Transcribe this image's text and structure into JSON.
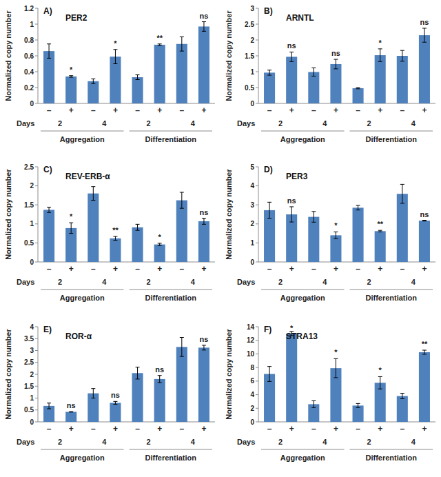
{
  "chart_data": [
    {
      "type": "bar",
      "panel_label": "A)",
      "title": "PER2",
      "y_label": "Normalized copy number",
      "x_label": "Days",
      "categories": [
        "–",
        "+",
        "–",
        "+",
        "–",
        "+",
        "–",
        "+"
      ],
      "days": [
        "2",
        "4",
        "2",
        "4"
      ],
      "conditions": [
        "Aggregation",
        "Differentiation"
      ],
      "values": [
        0.66,
        0.34,
        0.28,
        0.59,
        0.33,
        0.74,
        0.75,
        0.97
      ],
      "errors": [
        0.09,
        0.01,
        0.03,
        0.09,
        0.03,
        0.01,
        0.09,
        0.06
      ],
      "significance": [
        "*",
        "*",
        "**",
        "ns"
      ],
      "color": "#4f81bd",
      "ylim": [
        0,
        1.2
      ],
      "yticks": [
        0,
        0.2,
        0.4,
        0.6,
        0.8,
        1,
        1.2
      ],
      "grid": false
    },
    {
      "type": "bar",
      "panel_label": "B)",
      "title": "ARNTL",
      "y_label": "Normalized copy number",
      "x_label": "Days",
      "categories": [
        "–",
        "+",
        "–",
        "+",
        "–",
        "+",
        "–",
        "+"
      ],
      "days": [
        "2",
        "4",
        "2",
        "4"
      ],
      "conditions": [
        "Aggregation",
        "Differentiation"
      ],
      "values": [
        0.97,
        1.47,
        0.99,
        1.24,
        0.48,
        1.52,
        1.5,
        2.15
      ],
      "errors": [
        0.08,
        0.15,
        0.13,
        0.15,
        0.02,
        0.2,
        0.17,
        0.22
      ],
      "significance": [
        "ns",
        "ns",
        "*",
        "ns"
      ],
      "color": "#4f81bd",
      "ylim": [
        0,
        3
      ],
      "yticks": [
        0,
        0.5,
        1,
        1.5,
        2,
        2.5,
        3
      ],
      "grid": false
    },
    {
      "type": "bar",
      "panel_label": "C)",
      "title": "REV-ERB-α",
      "y_label": "Normalized copy number",
      "x_label": "Days",
      "categories": [
        "–",
        "+",
        "–",
        "+",
        "–",
        "+",
        "–",
        "+"
      ],
      "days": [
        "2",
        "4",
        "2",
        "4"
      ],
      "conditions": [
        "Aggregation",
        "Differentiation"
      ],
      "values": [
        1.37,
        0.89,
        1.8,
        0.62,
        0.91,
        0.46,
        1.62,
        1.07
      ],
      "errors": [
        0.07,
        0.14,
        0.18,
        0.05,
        0.08,
        0.03,
        0.21,
        0.08
      ],
      "significance": [
        "*",
        "**",
        "*",
        "ns"
      ],
      "color": "#4f81bd",
      "ylim": [
        0,
        2.5
      ],
      "yticks": [
        0,
        0.5,
        1,
        1.5,
        2,
        2.5
      ],
      "grid": false
    },
    {
      "type": "bar",
      "panel_label": "D)",
      "title": "PER3",
      "y_label": "Normalized copy number",
      "x_label": "Days",
      "categories": [
        "–",
        "+",
        "–",
        "+",
        "–",
        "+",
        "–",
        "+"
      ],
      "days": [
        "2",
        "4",
        "2",
        "4"
      ],
      "conditions": [
        "Aggregation",
        "Differentiation"
      ],
      "values": [
        2.72,
        2.5,
        2.37,
        1.4,
        2.85,
        1.62,
        3.58,
        2.17
      ],
      "errors": [
        0.42,
        0.4,
        0.28,
        0.18,
        0.12,
        0.04,
        0.5,
        0.02
      ],
      "significance": [
        "ns",
        "*",
        "**",
        "ns"
      ],
      "color": "#4f81bd",
      "ylim": [
        0,
        5
      ],
      "yticks": [
        0,
        1,
        2,
        3,
        4,
        5
      ],
      "grid": false
    },
    {
      "type": "bar",
      "panel_label": "E)",
      "title": "ROR-α",
      "y_label": "Normalized copy number",
      "x_label": "Days",
      "categories": [
        "–",
        "+",
        "–",
        "+",
        "–",
        "+",
        "–",
        "+"
      ],
      "days": [
        "2",
        "4",
        "2",
        "4"
      ],
      "conditions": [
        "Aggregation",
        "Differentiation"
      ],
      "values": [
        0.67,
        0.42,
        1.2,
        0.8,
        2.05,
        1.8,
        3.15,
        3.12
      ],
      "errors": [
        0.12,
        0.01,
        0.2,
        0.06,
        0.25,
        0.15,
        0.4,
        0.1
      ],
      "significance": [
        "ns",
        "ns",
        "ns",
        "ns"
      ],
      "color": "#4f81bd",
      "ylim": [
        0,
        4
      ],
      "yticks": [
        0,
        0.5,
        1,
        1.5,
        2,
        2.5,
        3,
        3.5,
        4
      ],
      "grid": false
    },
    {
      "type": "bar",
      "panel_label": "F)",
      "title": "STRA13",
      "y_label": "Normalized copy number",
      "x_label": "Days",
      "categories": [
        "–",
        "+",
        "–",
        "+",
        "–",
        "+",
        "–",
        "+"
      ],
      "days": [
        "2",
        "4",
        "2",
        "4"
      ],
      "conditions": [
        "Aggregation",
        "Differentiation"
      ],
      "values": [
        7.05,
        13.0,
        2.6,
        7.9,
        2.4,
        5.75,
        3.8,
        10.25
      ],
      "errors": [
        1.1,
        0.3,
        0.5,
        1.4,
        0.3,
        0.9,
        0.4,
        0.3
      ],
      "significance": [
        "*",
        "*",
        "*",
        "**"
      ],
      "color": "#4f81bd",
      "ylim": [
        0,
        14
      ],
      "yticks": [
        0,
        2,
        4,
        6,
        8,
        10,
        12,
        14
      ],
      "grid": false
    }
  ]
}
